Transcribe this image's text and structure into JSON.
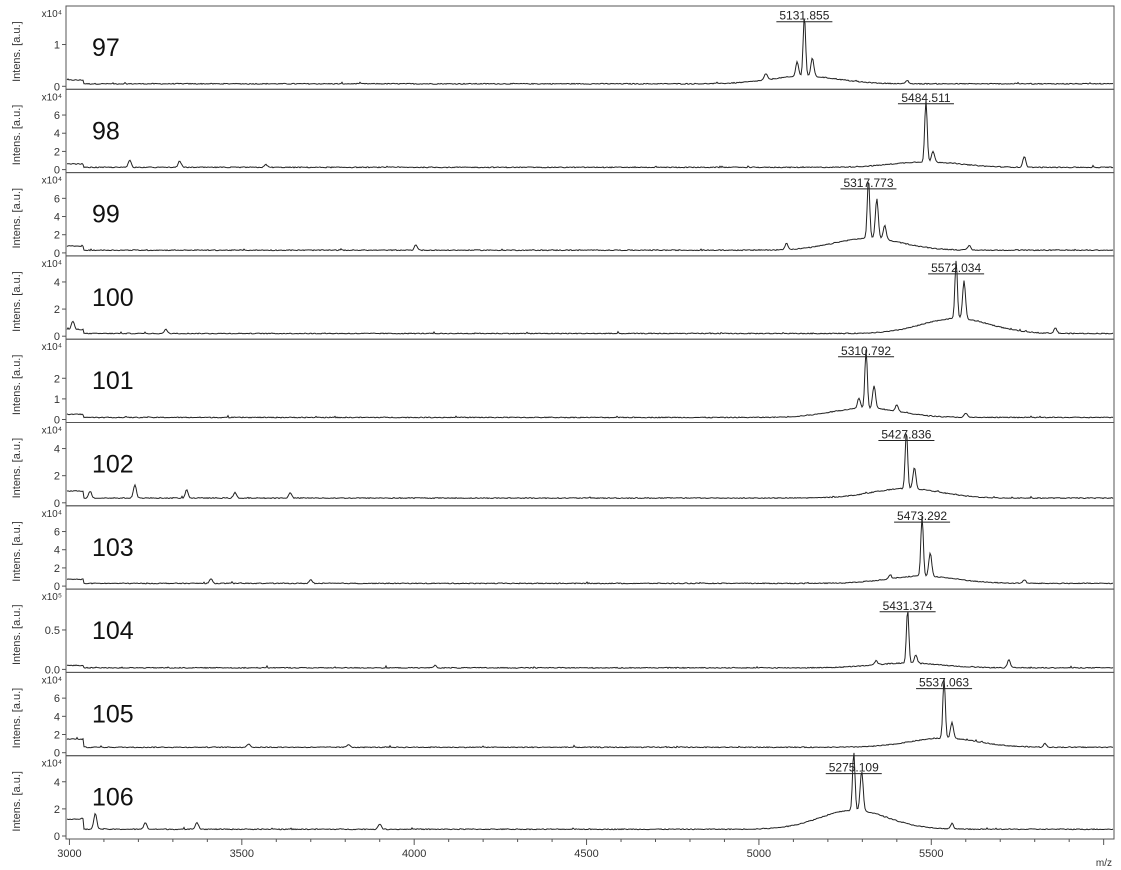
{
  "chart_data": {
    "type": "line",
    "xlabel": "m/z",
    "ylabel": "Intens. [a.u.]",
    "x_ticks": [
      3000,
      3500,
      4000,
      4500,
      5000,
      5500
    ],
    "xlim": [
      2990,
      6030
    ],
    "panels": [
      {
        "sample": "97",
        "peak_label": "5131.855",
        "peak_mz": 5131.855,
        "exp": "x10⁴",
        "ylim": [
          0,
          1.85
        ],
        "y_ticks": [
          {
            "v": 0,
            "t": "0"
          },
          {
            "v": 1,
            "t": "1"
          }
        ],
        "peak_height": 1.45,
        "second_peak_mz": 5155,
        "second_peak_height": 0.45,
        "minor_peaks": [
          {
            "mz": 5111,
            "h": 0.35
          },
          {
            "mz": 5020,
            "h": 0.15
          },
          {
            "mz": 5430,
            "h": 0.08
          }
        ],
        "baseline": 0.06,
        "hump_height": 0.18
      },
      {
        "sample": "98",
        "peak_label": "5484.511",
        "peak_mz": 5484.511,
        "exp": "x10⁴",
        "ylim": [
          0,
          8.5
        ],
        "y_ticks": [
          {
            "v": 0,
            "t": "0"
          },
          {
            "v": 2,
            "t": "2"
          },
          {
            "v": 4,
            "t": "4"
          },
          {
            "v": 6,
            "t": "6"
          }
        ],
        "peak_height": 6.8,
        "second_peak_mz": 5505,
        "second_peak_height": 1.2,
        "minor_peaks": [
          {
            "mz": 3175,
            "h": 0.8
          },
          {
            "mz": 3320,
            "h": 0.7
          },
          {
            "mz": 5770,
            "h": 1.2
          },
          {
            "mz": 3570,
            "h": 0.3
          }
        ],
        "baseline": 0.25,
        "hump_height": 0.6
      },
      {
        "sample": "99",
        "peak_label": "5317.773",
        "peak_mz": 5317.773,
        "exp": "x10⁴",
        "ylim": [
          0,
          8.5
        ],
        "y_ticks": [
          {
            "v": 0,
            "t": "0"
          },
          {
            "v": 2,
            "t": "2"
          },
          {
            "v": 4,
            "t": "4"
          },
          {
            "v": 6,
            "t": "6"
          }
        ],
        "peak_height": 6.6,
        "second_peak_mz": 5342,
        "second_peak_height": 4.4,
        "minor_peaks": [
          {
            "mz": 5365,
            "h": 1.6
          },
          {
            "mz": 4005,
            "h": 0.6
          },
          {
            "mz": 5080,
            "h": 0.7
          },
          {
            "mz": 5610,
            "h": 0.5
          }
        ],
        "baseline": 0.3,
        "hump_height": 1.3
      },
      {
        "sample": "100",
        "peak_label": "5572.034",
        "peak_mz": 5572.034,
        "exp": "x10⁴",
        "ylim": [
          0,
          5.7
        ],
        "y_ticks": [
          {
            "v": 0,
            "t": "0"
          },
          {
            "v": 2,
            "t": "2"
          },
          {
            "v": 4,
            "t": "4"
          }
        ],
        "peak_height": 4.3,
        "second_peak_mz": 5595,
        "second_peak_height": 2.8,
        "minor_peaks": [
          {
            "mz": 3010,
            "h": 0.6
          },
          {
            "mz": 3280,
            "h": 0.3
          },
          {
            "mz": 5860,
            "h": 0.4
          }
        ],
        "baseline": 0.2,
        "hump_height": 1.1
      },
      {
        "sample": "101",
        "peak_label": "5310.792",
        "peak_mz": 5310.792,
        "exp": "x10⁴",
        "ylim": [
          0,
          3.75
        ],
        "y_ticks": [
          {
            "v": 0,
            "t": "0"
          },
          {
            "v": 1,
            "t": "1"
          },
          {
            "v": 2,
            "t": "2"
          }
        ],
        "peak_height": 2.85,
        "second_peak_mz": 5334,
        "second_peak_height": 1.1,
        "minor_peaks": [
          {
            "mz": 5290,
            "h": 0.5
          },
          {
            "mz": 5400,
            "h": 0.3
          },
          {
            "mz": 5600,
            "h": 0.2
          }
        ],
        "baseline": 0.1,
        "hump_height": 0.45
      },
      {
        "sample": "102",
        "peak_label": "5427.836",
        "peak_mz": 5427.836,
        "exp": "x10⁴",
        "ylim": [
          0,
          5.7
        ],
        "y_ticks": [
          {
            "v": 0,
            "t": "0"
          },
          {
            "v": 2,
            "t": "2"
          },
          {
            "v": 4,
            "t": "4"
          }
        ],
        "peak_height": 4.3,
        "second_peak_mz": 5451,
        "second_peak_height": 1.6,
        "minor_peaks": [
          {
            "mz": 3190,
            "h": 1.0
          },
          {
            "mz": 3340,
            "h": 0.6
          },
          {
            "mz": 3480,
            "h": 0.4
          },
          {
            "mz": 3640,
            "h": 0.4
          },
          {
            "mz": 3060,
            "h": 0.5
          }
        ],
        "baseline": 0.35,
        "hump_height": 0.7
      },
      {
        "sample": "103",
        "peak_label": "5473.292",
        "peak_mz": 5473.292,
        "exp": "x10⁴",
        "ylim": [
          0,
          8.5
        ],
        "y_ticks": [
          {
            "v": 0,
            "t": "0"
          },
          {
            "v": 2,
            "t": "2"
          },
          {
            "v": 4,
            "t": "4"
          },
          {
            "v": 6,
            "t": "6"
          }
        ],
        "peak_height": 6.6,
        "second_peak_mz": 5497,
        "second_peak_height": 2.6,
        "minor_peaks": [
          {
            "mz": 3410,
            "h": 0.5
          },
          {
            "mz": 3700,
            "h": 0.4
          },
          {
            "mz": 5770,
            "h": 0.4
          },
          {
            "mz": 5380,
            "h": 0.4
          }
        ],
        "baseline": 0.3,
        "hump_height": 0.8
      },
      {
        "sample": "104",
        "peak_label": "5431.374",
        "peak_mz": 5431.374,
        "exp": "x10⁵",
        "ylim": [
          0,
          0.98
        ],
        "y_ticks": [
          {
            "v": 0,
            "t": "0.0"
          },
          {
            "v": 0.5,
            "t": "0.5"
          }
        ],
        "peak_height": 0.68,
        "second_peak_mz": 5455,
        "second_peak_height": 0.1,
        "minor_peaks": [
          {
            "mz": 5725,
            "h": 0.1
          },
          {
            "mz": 5340,
            "h": 0.05
          },
          {
            "mz": 4060,
            "h": 0.03
          }
        ],
        "baseline": 0.02,
        "hump_height": 0.06
      },
      {
        "sample": "105",
        "peak_label": "5537.063",
        "peak_mz": 5537.063,
        "exp": "x10⁴",
        "ylim": [
          0,
          8.5
        ],
        "y_ticks": [
          {
            "v": 0,
            "t": "0"
          },
          {
            "v": 2,
            "t": "2"
          },
          {
            "v": 4,
            "t": "4"
          },
          {
            "v": 6,
            "t": "6"
          }
        ],
        "peak_height": 6.6,
        "second_peak_mz": 5560,
        "second_peak_height": 1.8,
        "minor_peaks": [
          {
            "mz": 3520,
            "h": 0.4
          },
          {
            "mz": 3810,
            "h": 0.3
          },
          {
            "mz": 5830,
            "h": 0.4
          }
        ],
        "baseline": 0.6,
        "hump_height": 1.0
      },
      {
        "sample": "106",
        "peak_label": "5275.109",
        "peak_mz": 5275.109,
        "exp": "x10⁴",
        "ylim": [
          0,
          5.7
        ],
        "y_ticks": [
          {
            "v": 0,
            "t": "0"
          },
          {
            "v": 2,
            "t": "2"
          },
          {
            "v": 4,
            "t": "4"
          }
        ],
        "peak_height": 4.3,
        "second_peak_mz": 5298,
        "second_peak_height": 2.9,
        "minor_peaks": [
          {
            "mz": 3075,
            "h": 1.2
          },
          {
            "mz": 3220,
            "h": 0.5
          },
          {
            "mz": 3370,
            "h": 0.5
          },
          {
            "mz": 3900,
            "h": 0.4
          },
          {
            "mz": 5560,
            "h": 0.4
          }
        ],
        "baseline": 0.5,
        "hump_height": 1.4
      }
    ]
  }
}
